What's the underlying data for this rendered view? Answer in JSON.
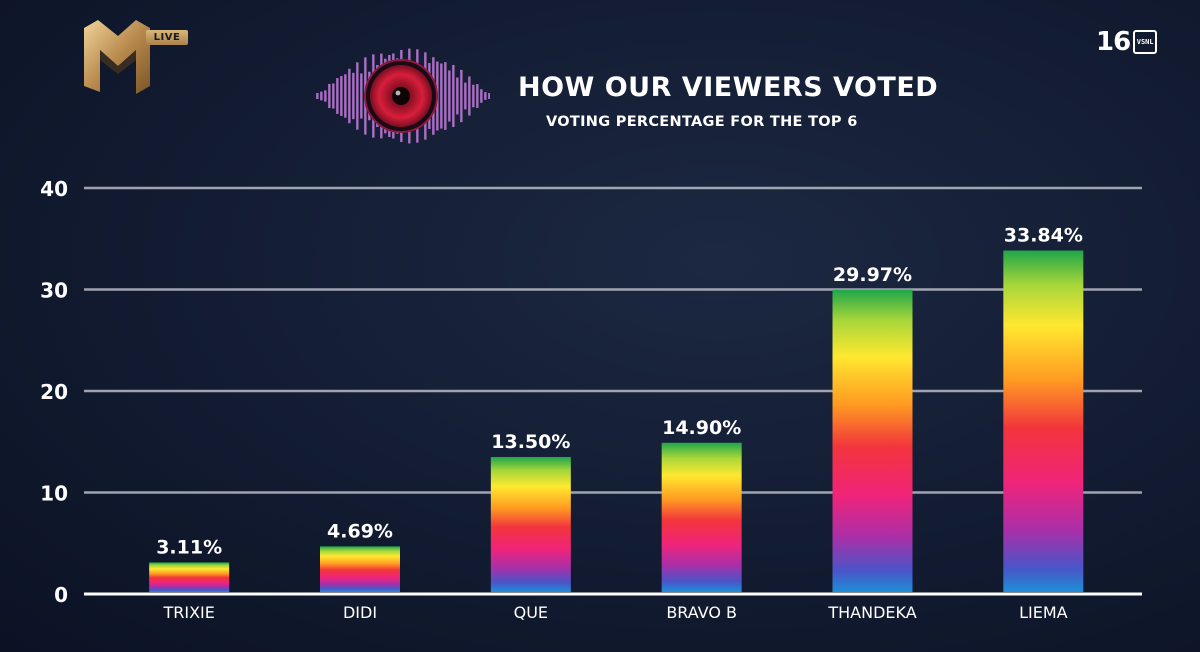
{
  "header": {
    "channel_badge": "LIVE",
    "rating_number": "16",
    "rating_letters": "VSNL",
    "title": "HOW OUR VIEWERS VOTED",
    "subtitle": "VOTING PERCENTAGE FOR THE TOP 6"
  },
  "colors": {
    "background": "#121b31",
    "gridline": "#b9bcc6",
    "text": "#ffffff",
    "gold": "#c9a062"
  },
  "chart_data": {
    "type": "bar",
    "title": "HOW OUR VIEWERS VOTED",
    "subtitle": "VOTING PERCENTAGE FOR THE TOP 6",
    "categories": [
      "TRIXIE",
      "DIDI",
      "QUE",
      "BRAVO B",
      "THANDEKA",
      "LIEMA"
    ],
    "values": [
      3.11,
      4.69,
      13.5,
      14.9,
      29.97,
      33.84
    ],
    "data_labels": [
      "3.11%",
      "4.69%",
      "13.50%",
      "14.90%",
      "29.97%",
      "33.84%"
    ],
    "y_ticks": [
      "0",
      "10",
      "20",
      "30",
      "40"
    ],
    "ylim": [
      0,
      40
    ],
    "grid": true,
    "legend": "none",
    "bar_fill": "rainbow-gradient"
  }
}
